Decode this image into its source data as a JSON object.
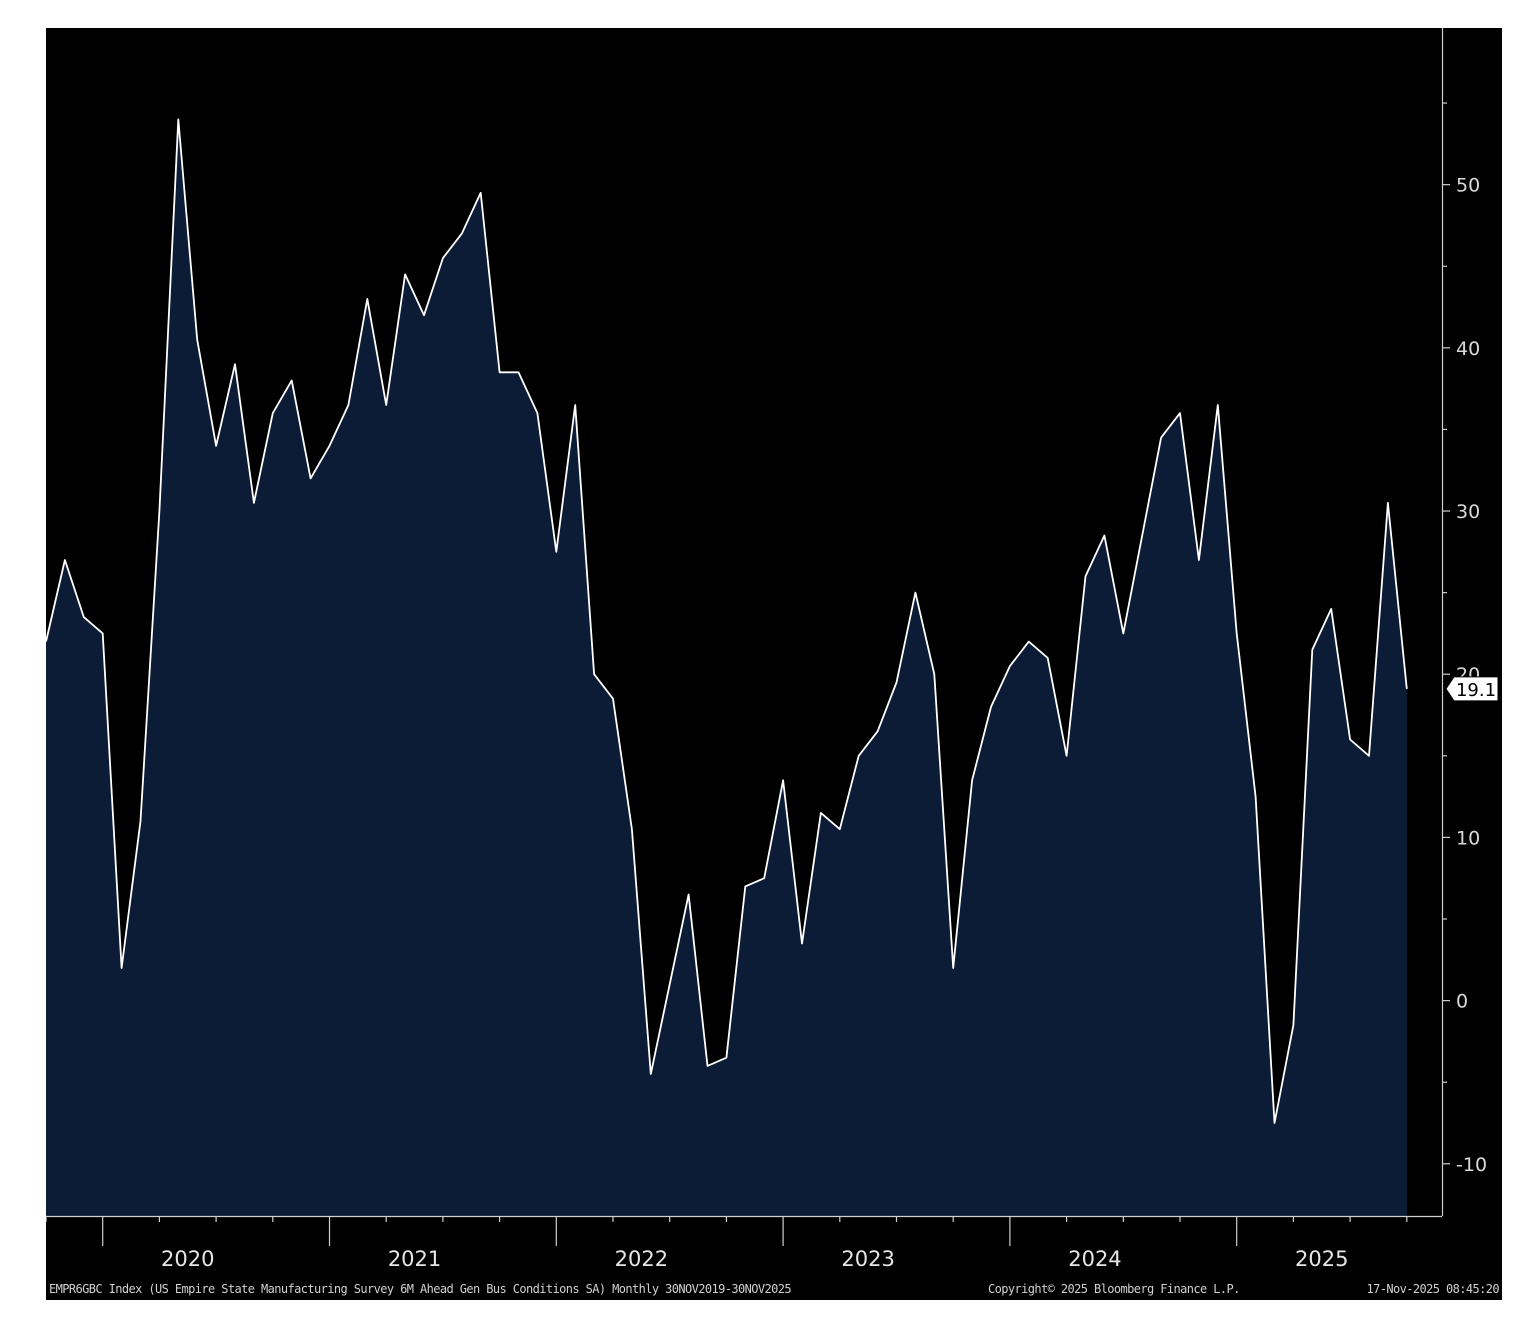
{
  "chart_data": {
    "type": "area",
    "title": "",
    "series": [
      {
        "values": [
          22,
          27,
          23.5,
          22.5,
          2,
          11,
          30,
          54,
          40.5,
          34,
          39,
          30.5,
          36,
          38,
          32,
          34,
          36.5,
          43,
          36.5,
          44.5,
          42,
          45.5,
          47,
          49.5,
          38.5,
          38.5,
          36,
          27.5,
          36.5,
          20,
          18.5,
          10.5,
          -4.5,
          1,
          6.5,
          -4,
          -3.5,
          7,
          7.5,
          13.5,
          3.5,
          11.5,
          10.5,
          15,
          16.5,
          19.5,
          25,
          20,
          2,
          13.5,
          18,
          20.5,
          22,
          21,
          15,
          26,
          28.5,
          22.5,
          28.5,
          34.5,
          36,
          27,
          36.5,
          22.5,
          12.5,
          -7.5,
          -1.5,
          21.5,
          24,
          16,
          15,
          30.5,
          19.1
        ]
      }
    ],
    "x_start": "2019-11",
    "x_end": "2025-11",
    "x_ticks": [
      "2020",
      "2021",
      "2022",
      "2023",
      "2024",
      "2025"
    ],
    "y_ticks": [
      -10,
      0,
      10,
      20,
      30,
      40,
      50
    ],
    "ylim": [
      -13.2,
      59.6
    ],
    "y_axis_side": "right",
    "last_value_label": "19.1",
    "grid": false,
    "colors": {
      "background": "#000000",
      "fill": "#0d1c36",
      "line": "#ffffff",
      "axis": "#cfcfcf"
    }
  },
  "footer": {
    "description": "EMPR6GBC Index (US Empire State Manufacturing Survey 6M Ahead Gen Bus Conditions SA) Monthly 30NOV2019-30NOV2025",
    "copyright": "Copyright© 2025 Bloomberg Finance L.P.",
    "timestamp": "17-Nov-2025 08:45:20"
  }
}
